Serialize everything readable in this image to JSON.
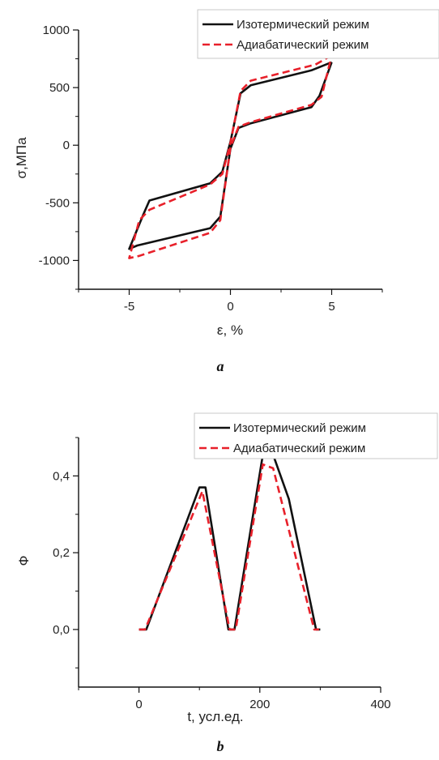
{
  "colors": {
    "series_iso": "#111111",
    "series_adi": "#e8202a"
  },
  "chart_data": [
    {
      "type": "line",
      "panel_label": "a",
      "xlabel": "ε, %",
      "ylabel": "σ,МПа",
      "xlim": [
        -7.5,
        7.5
      ],
      "ylim": [
        -1250,
        1000
      ],
      "xticks": [
        -5,
        0,
        5
      ],
      "yticks": [
        1000,
        500,
        0,
        -500,
        -1000
      ],
      "xtick_labels": [
        "-5",
        "0",
        "5"
      ],
      "ytick_labels": [
        "1000",
        "500",
        "0",
        "-500",
        "-1000"
      ],
      "grid": false,
      "legend_position": "top-right",
      "series": [
        {
          "name": "Изотермический режим",
          "style": "solid",
          "x": [
            5.0,
            4.0,
            1.0,
            0.5,
            0.0,
            -0.4,
            -1.0,
            -4.0,
            -4.3,
            -5.0,
            -4.6,
            -1.0,
            -0.5,
            0.0,
            0.4,
            1.0,
            4.0,
            4.4,
            5.0
          ],
          "y": [
            720,
            650,
            520,
            450,
            30,
            -230,
            -330,
            -480,
            -600,
            -900,
            -870,
            -720,
            -620,
            -30,
            150,
            190,
            330,
            430,
            720
          ]
        },
        {
          "name": "Адиабатический режим",
          "style": "dashed",
          "x": [
            5.0,
            4.2,
            1.0,
            0.5,
            0.0,
            -0.4,
            -1.0,
            -4.0,
            -4.5,
            -5.0,
            -4.5,
            -1.0,
            -0.5,
            0.0,
            0.4,
            1.0,
            4.0,
            4.5,
            5.0
          ],
          "y": [
            780,
            700,
            560,
            470,
            20,
            -250,
            -340,
            -560,
            -650,
            -980,
            -960,
            -760,
            -650,
            -20,
            160,
            200,
            350,
            420,
            780
          ]
        }
      ]
    },
    {
      "type": "line",
      "panel_label": "b",
      "xlabel": "t, усл.ед.",
      "ylabel": "Ф",
      "xlim": [
        -100,
        400
      ],
      "ylim": [
        -0.15,
        0.5
      ],
      "xticks": [
        0,
        200,
        400
      ],
      "yticks": [
        0.4,
        0.2,
        0.0
      ],
      "xtick_labels": [
        "0",
        "200",
        "400"
      ],
      "ytick_labels": [
        "0,4",
        "0,2",
        "0,0"
      ],
      "grid": false,
      "legend_position": "top-right",
      "series": [
        {
          "name": "Изотермический режим",
          "style": "solid",
          "x": [
            0,
            12,
            100,
            110,
            148,
            152,
            158,
            205,
            222,
            248,
            293,
            300
          ],
          "y": [
            0,
            0,
            0.37,
            0.37,
            0,
            0,
            0,
            0.455,
            0.455,
            0.34,
            0,
            0
          ]
        },
        {
          "name": "Адиабатический режим",
          "style": "dashed",
          "x": [
            0,
            10,
            105,
            150,
            160,
            205,
            222,
            290,
            298
          ],
          "y": [
            0,
            0,
            0.36,
            0,
            0,
            0.43,
            0.42,
            0,
            0
          ]
        }
      ]
    }
  ]
}
